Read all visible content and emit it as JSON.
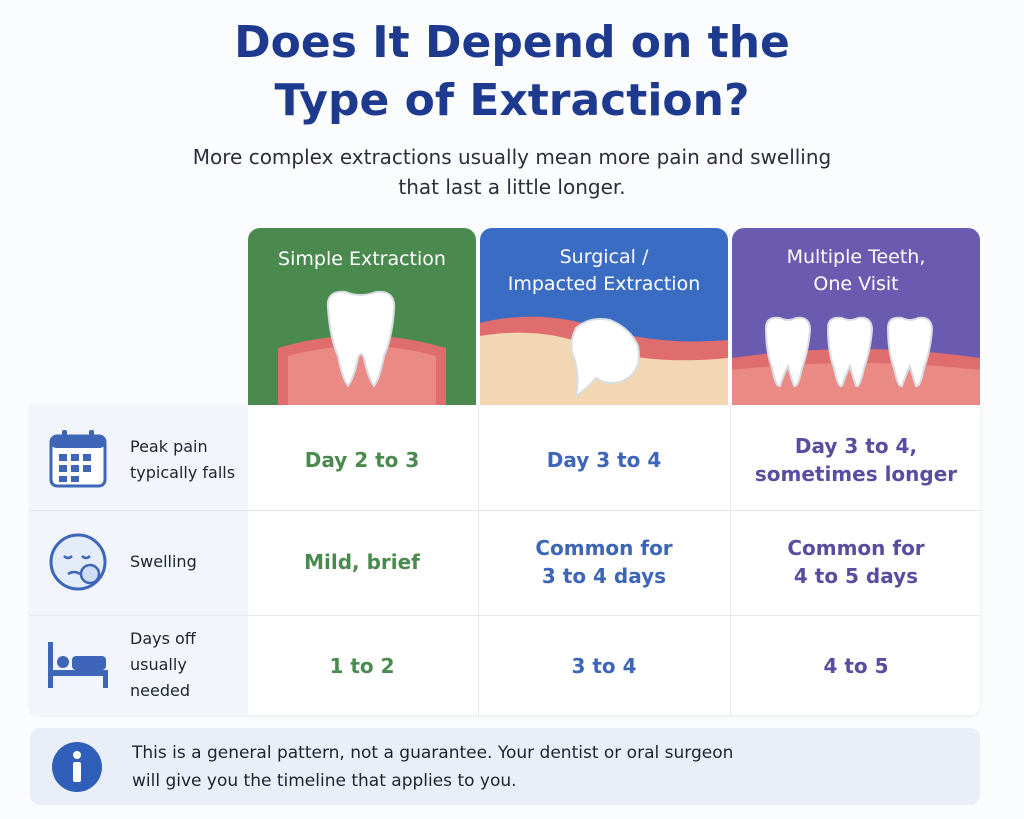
{
  "header": {
    "title": [
      "Does It Depend on the",
      "Type of Extraction?"
    ],
    "subtitle": [
      "More complex extractions usually mean more pain and swelling",
      "that last a little longer."
    ]
  },
  "table": {
    "columns": [
      [
        "Simple Extraction"
      ],
      [
        "Surgical /",
        "Impacted Extraction"
      ],
      [
        "Multiple Teeth,",
        "One Visit"
      ]
    ],
    "rows": [
      {
        "label": [
          "Peak pain",
          "typically falls"
        ],
        "cells": [
          [
            "Day 2 to 3"
          ],
          [
            "Day 3 to 4"
          ],
          [
            "Day 3 to 4,",
            "sometimes longer"
          ]
        ]
      },
      {
        "label": [
          "Swelling"
        ],
        "cells": [
          [
            "Mild, brief"
          ],
          [
            "Common for",
            "3 to 4 days"
          ],
          [
            "Common for",
            "4 to 5 days"
          ]
        ]
      },
      {
        "label": [
          "Days off",
          "usually needed"
        ],
        "cells": [
          [
            "1 to 2"
          ],
          [
            "3 to 4"
          ],
          [
            "4 to 5"
          ]
        ]
      }
    ]
  },
  "note": [
    "This is a general pattern, not a guarantee. Your dentist or oral surgeon",
    "will give you the timeline that applies to you."
  ]
}
